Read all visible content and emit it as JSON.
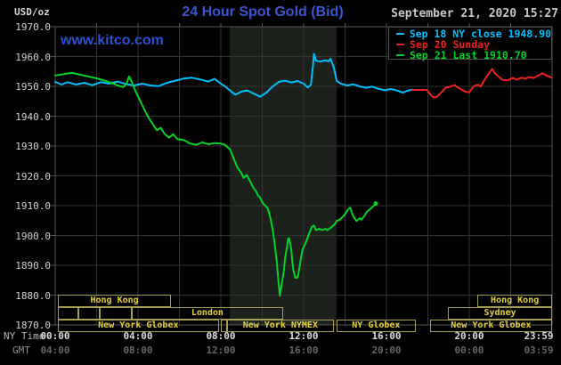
{
  "colors": {
    "background": "#000000",
    "band": "#1c211b",
    "grid": "#333333",
    "plot_border": "#565656",
    "title_blue": "#3c55d0",
    "watermark_blue": "#2d4fd0",
    "cyan_series": "#00bfff",
    "red_series": "#ee2020",
    "green_series": "#00d426",
    "session_border": "#a59f55",
    "session_text": "#e6d23e"
  },
  "header": {
    "unit_label": "USD/oz",
    "title": "24 Hour Spot Gold (Bid)",
    "datetime": "September 21, 2020 15:27",
    "watermark": "www.kitco.com"
  },
  "legend": {
    "items": [
      {
        "label": "Sep 18 NY close 1948.90",
        "color": "#00bfff"
      },
      {
        "label": "Sep 20 Sunday",
        "color": "#ee2020"
      },
      {
        "label": "Sep 21 Last 1910.70",
        "color": "#00d426"
      }
    ]
  },
  "axes": {
    "x": {
      "ny_header": "NY Time",
      "gmt_header": "GMT"
    },
    "y": {
      "min": 1870,
      "max": 1970,
      "step": 10
    }
  },
  "sessions": {
    "rows": [
      {
        "boxes": [
          {
            "from": 0.13,
            "to": 5.6,
            "label": "Hong Kong"
          },
          {
            "from": 20.4,
            "to": 24.0,
            "label": "Hong Kong"
          }
        ]
      },
      {
        "boxes": [
          {
            "from": 0.13,
            "to": 1.12,
            "label": ""
          },
          {
            "from": 1.12,
            "to": 2.15,
            "label": ""
          },
          {
            "from": 2.15,
            "to": 3.7,
            "label": ""
          },
          {
            "from": 3.7,
            "to": 11.0,
            "label": "London"
          },
          {
            "from": 18.97,
            "to": 24.0,
            "label": "Sydney"
          }
        ]
      },
      {
        "boxes": [
          {
            "from": 0.13,
            "to": 7.9,
            "label": "New York Globex"
          },
          {
            "from": 8.0,
            "to": 8.3,
            "label": ""
          },
          {
            "from": 8.3,
            "to": 13.45,
            "label": "New York NYMEX"
          },
          {
            "from": 13.6,
            "to": 17.4,
            "label": "NY Globex"
          },
          {
            "from": 18.1,
            "to": 24.0,
            "label": "New York Globex"
          }
        ]
      }
    ]
  },
  "chart_data": {
    "type": "line",
    "title": "24 Hour Spot Gold (Bid)",
    "ylabel": "USD/oz",
    "ylim": [
      1870,
      1970
    ],
    "xlim_hours": [
      0,
      24
    ],
    "grid": true,
    "legend_position": "top-right",
    "band": {
      "start_hour": 8.43,
      "end_hour": 13.59,
      "note": "NYMEX floor session shading"
    },
    "x_ticks": [
      {
        "h": 0,
        "ny": "00:00",
        "gmt": "04:00"
      },
      {
        "h": 4,
        "ny": "04:00",
        "gmt": "08:00"
      },
      {
        "h": 8,
        "ny": "08:00",
        "gmt": "12:00"
      },
      {
        "h": 12,
        "ny": "12:00",
        "gmt": "16:00"
      },
      {
        "h": 16,
        "ny": "16:00",
        "gmt": "20:00"
      },
      {
        "h": 20,
        "ny": "20:00",
        "gmt": "00:00"
      },
      {
        "h": 23.983,
        "ny": "23:59",
        "gmt": "03:59"
      }
    ],
    "series": [
      {
        "name": "Sep 18 NY close 1948.90",
        "color": "#00bfff",
        "end_marker": false,
        "points": [
          [
            0,
            1951.5
          ],
          [
            0.3,
            1950.6
          ],
          [
            0.6,
            1951.4
          ],
          [
            1.0,
            1950.6
          ],
          [
            1.4,
            1951.2
          ],
          [
            1.8,
            1950.4
          ],
          [
            2.2,
            1951.4
          ],
          [
            2.6,
            1950.9
          ],
          [
            3.0,
            1951.6
          ],
          [
            3.4,
            1950.8
          ],
          [
            3.8,
            1950.3
          ],
          [
            4.2,
            1950.9
          ],
          [
            4.6,
            1950.3
          ],
          [
            5.0,
            1950.1
          ],
          [
            5.4,
            1951.2
          ],
          [
            5.8,
            1951.9
          ],
          [
            6.2,
            1952.6
          ],
          [
            6.6,
            1952.9
          ],
          [
            7.0,
            1952.3
          ],
          [
            7.4,
            1951.6
          ],
          [
            7.7,
            1952.5
          ],
          [
            8.0,
            1950.9
          ],
          [
            8.2,
            1950.0
          ],
          [
            8.5,
            1948.3
          ],
          [
            8.7,
            1947.2
          ],
          [
            9.0,
            1948.3
          ],
          [
            9.3,
            1948.6
          ],
          [
            9.6,
            1947.5
          ],
          [
            9.9,
            1946.5
          ],
          [
            10.2,
            1947.9
          ],
          [
            10.5,
            1949.9
          ],
          [
            10.8,
            1951.5
          ],
          [
            11.1,
            1951.9
          ],
          [
            11.4,
            1951.3
          ],
          [
            11.7,
            1951.8
          ],
          [
            12.0,
            1950.9
          ],
          [
            12.2,
            1949.6
          ],
          [
            12.35,
            1950.5
          ],
          [
            12.45,
            1957.0
          ],
          [
            12.5,
            1960.9
          ],
          [
            12.6,
            1958.6
          ],
          [
            12.8,
            1958.3
          ],
          [
            13.0,
            1958.7
          ],
          [
            13.2,
            1958.4
          ],
          [
            13.3,
            1959.2
          ],
          [
            13.45,
            1956.5
          ],
          [
            13.6,
            1951.8
          ],
          [
            13.8,
            1950.9
          ],
          [
            14.1,
            1950.3
          ],
          [
            14.4,
            1950.7
          ],
          [
            14.7,
            1950.0
          ],
          [
            15.0,
            1949.5
          ],
          [
            15.3,
            1949.9
          ],
          [
            15.6,
            1949.2
          ],
          [
            15.9,
            1948.7
          ],
          [
            16.2,
            1949.1
          ],
          [
            16.5,
            1948.6
          ],
          [
            16.8,
            1947.9
          ],
          [
            17.0,
            1948.5
          ],
          [
            17.25,
            1948.9
          ]
        ]
      },
      {
        "name": "Sep 20 Sunday",
        "color": "#ee2020",
        "end_marker": false,
        "points": [
          [
            17.25,
            1948.8
          ],
          [
            17.6,
            1948.8
          ],
          [
            17.95,
            1948.8
          ],
          [
            18.1,
            1947.5
          ],
          [
            18.25,
            1946.4
          ],
          [
            18.4,
            1946.3
          ],
          [
            18.6,
            1947.6
          ],
          [
            18.85,
            1949.5
          ],
          [
            19.1,
            1950.0
          ],
          [
            19.3,
            1950.4
          ],
          [
            19.5,
            1949.4
          ],
          [
            19.8,
            1948.2
          ],
          [
            20.0,
            1948.0
          ],
          [
            20.2,
            1949.9
          ],
          [
            20.4,
            1950.6
          ],
          [
            20.55,
            1949.9
          ],
          [
            20.8,
            1952.9
          ],
          [
            21.1,
            1955.8
          ],
          [
            21.25,
            1954.2
          ],
          [
            21.45,
            1953.1
          ],
          [
            21.6,
            1952.2
          ],
          [
            21.85,
            1952.0
          ],
          [
            22.1,
            1952.8
          ],
          [
            22.3,
            1952.2
          ],
          [
            22.5,
            1952.9
          ],
          [
            22.7,
            1952.6
          ],
          [
            22.9,
            1953.1
          ],
          [
            23.1,
            1952.8
          ],
          [
            23.35,
            1953.7
          ],
          [
            23.55,
            1954.4
          ],
          [
            23.7,
            1953.7
          ],
          [
            23.85,
            1953.3
          ],
          [
            23.98,
            1952.9
          ]
        ]
      },
      {
        "name": "Sep 21 Last 1910.70",
        "color": "#00d426",
        "end_marker": true,
        "points": [
          [
            0,
            1953.6
          ],
          [
            0.4,
            1954.1
          ],
          [
            0.8,
            1954.5
          ],
          [
            1.2,
            1953.9
          ],
          [
            1.6,
            1953.3
          ],
          [
            2.0,
            1952.7
          ],
          [
            2.4,
            1951.9
          ],
          [
            2.8,
            1950.9
          ],
          [
            3.1,
            1950.1
          ],
          [
            3.3,
            1949.8
          ],
          [
            3.45,
            1951.0
          ],
          [
            3.57,
            1953.3
          ],
          [
            3.7,
            1951.5
          ],
          [
            3.9,
            1948.0
          ],
          [
            4.1,
            1945.2
          ],
          [
            4.3,
            1942.3
          ],
          [
            4.5,
            1939.6
          ],
          [
            4.7,
            1937.4
          ],
          [
            4.9,
            1935.3
          ],
          [
            5.1,
            1936.1
          ],
          [
            5.3,
            1933.9
          ],
          [
            5.5,
            1932.8
          ],
          [
            5.7,
            1934.0
          ],
          [
            5.9,
            1932.3
          ],
          [
            6.2,
            1932.0
          ],
          [
            6.5,
            1930.9
          ],
          [
            6.8,
            1930.4
          ],
          [
            7.1,
            1931.2
          ],
          [
            7.4,
            1930.6
          ],
          [
            7.7,
            1931.0
          ],
          [
            8.0,
            1930.8
          ],
          [
            8.2,
            1930.4
          ],
          [
            8.45,
            1928.8
          ],
          [
            8.65,
            1925.3
          ],
          [
            8.8,
            1922.8
          ],
          [
            9.0,
            1920.8
          ],
          [
            9.1,
            1919.3
          ],
          [
            9.25,
            1920.3
          ],
          [
            9.4,
            1918.3
          ],
          [
            9.55,
            1916.3
          ],
          [
            9.7,
            1914.8
          ],
          [
            9.8,
            1913.3
          ],
          [
            9.9,
            1912.7
          ],
          [
            10.0,
            1911.2
          ],
          [
            10.1,
            1910.3
          ],
          [
            10.25,
            1909.3
          ],
          [
            10.35,
            1907.2
          ],
          [
            10.5,
            1902.2
          ],
          [
            10.6,
            1897.3
          ],
          [
            10.7,
            1891.3
          ],
          [
            10.75,
            1887.2
          ],
          [
            10.8,
            1883.3
          ],
          [
            10.85,
            1879.8
          ],
          [
            10.95,
            1884.2
          ],
          [
            11.05,
            1888.4
          ],
          [
            11.1,
            1892.3
          ],
          [
            11.2,
            1896.2
          ],
          [
            11.25,
            1899.0
          ],
          [
            11.3,
            1899.1
          ],
          [
            11.4,
            1895.4
          ],
          [
            11.45,
            1891.5
          ],
          [
            11.5,
            1888.4
          ],
          [
            11.6,
            1885.8
          ],
          [
            11.7,
            1885.9
          ],
          [
            11.75,
            1887.3
          ],
          [
            11.85,
            1891.5
          ],
          [
            11.95,
            1895.4
          ],
          [
            12.1,
            1897.5
          ],
          [
            12.25,
            1900.4
          ],
          [
            12.4,
            1902.9
          ],
          [
            12.5,
            1903.3
          ],
          [
            12.6,
            1901.8
          ],
          [
            12.75,
            1902.2
          ],
          [
            12.9,
            1901.8
          ],
          [
            13.05,
            1902.2
          ],
          [
            13.15,
            1901.8
          ],
          [
            13.35,
            1902.8
          ],
          [
            13.5,
            1903.8
          ],
          [
            13.6,
            1904.9
          ],
          [
            13.75,
            1905.3
          ],
          [
            13.9,
            1906.4
          ],
          [
            14.0,
            1907.2
          ],
          [
            14.15,
            1908.8
          ],
          [
            14.25,
            1909.3
          ],
          [
            14.4,
            1906.3
          ],
          [
            14.55,
            1904.9
          ],
          [
            14.7,
            1905.8
          ],
          [
            14.8,
            1905.3
          ],
          [
            14.95,
            1906.8
          ],
          [
            15.05,
            1907.9
          ],
          [
            15.2,
            1908.8
          ],
          [
            15.35,
            1909.7
          ],
          [
            15.48,
            1910.7
          ]
        ]
      }
    ]
  }
}
